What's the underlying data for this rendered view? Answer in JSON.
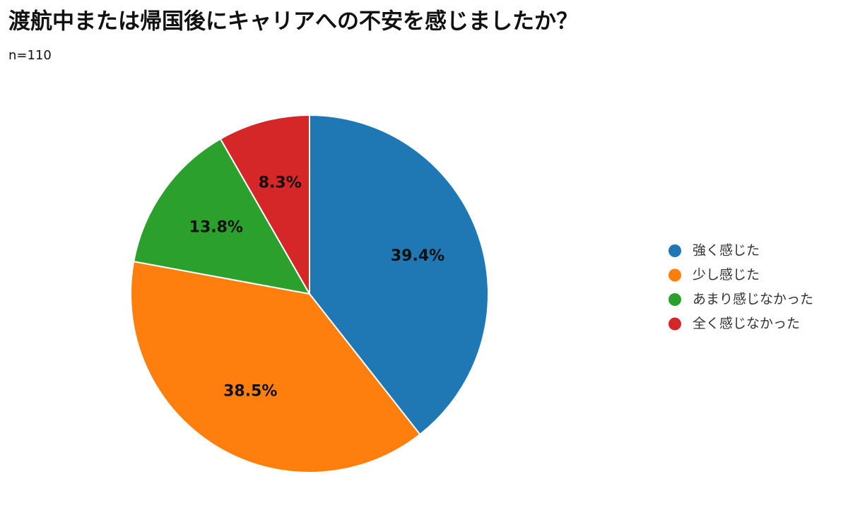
{
  "chart_data": {
    "type": "pie",
    "title": "渡航中または帰国後にキャリアへの不安を感じましたか？",
    "subtitle": "n=110",
    "categories": [
      "強く感じた",
      "少し感じた",
      "あまり感じなかった",
      "全く感じなかった"
    ],
    "values": [
      39.4,
      38.5,
      13.8,
      8.3
    ],
    "value_labels": [
      "39.4%",
      "38.5%",
      "13.8%",
      "8.3%"
    ],
    "colors": [
      "#1f77b4",
      "#ff7f0e",
      "#2ca02c",
      "#d62728"
    ],
    "legend": "right"
  }
}
